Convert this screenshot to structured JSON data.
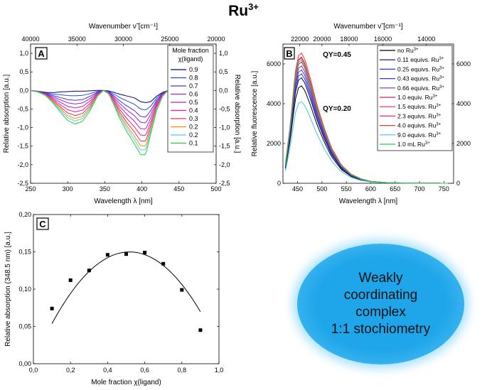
{
  "title": {
    "base": "Ru",
    "sup": "3+"
  },
  "chart_data": [
    {
      "panel": "A",
      "type": "line",
      "xlabel": "Wavelength λ [nm]",
      "ylabel": "Relative absorption [a.u.]",
      "right_ylabel": "Relative absorption [a.u.]",
      "top_xlabel": "Wavenumber ν̃ [cm⁻¹]",
      "xlim": [
        250,
        500
      ],
      "ylim": [
        -2.5,
        1.25
      ],
      "x_ticks": [
        250,
        300,
        350,
        400,
        450,
        500
      ],
      "x_tick_labels": [
        "250",
        "300",
        "350",
        "400",
        "450",
        "500"
      ],
      "y_ticks": [
        -2.5,
        -2.0,
        -1.5,
        -1.0,
        -0.5,
        0.0,
        0.5,
        1.0
      ],
      "y_tick_labels": [
        "-2,5",
        "-2,0",
        "-1,5",
        "-1,0",
        "-0,5",
        "0,0",
        "0,5",
        "1,0"
      ],
      "top_ticks": [
        40000,
        35000,
        30000,
        25000,
        20000
      ],
      "top_tick_labels": [
        "40000",
        "35000",
        "30000",
        "25000",
        "20000"
      ],
      "legend_title": "Mole fraction χ(ligand)",
      "x": [
        250,
        260,
        270,
        280,
        290,
        300,
        310,
        320,
        330,
        340,
        348,
        355,
        362,
        370,
        380,
        390,
        398,
        405,
        412,
        420,
        428,
        435
      ],
      "shape_a": [
        0,
        -0.02,
        -0.08,
        -0.25,
        -0.5,
        -0.72,
        -0.82,
        -0.75,
        -0.5,
        -0.15,
        0,
        -0.07,
        -0.3,
        -0.6,
        -0.9,
        -1.15,
        -1.32,
        -1.3,
        -0.8,
        -0.35,
        -0.1,
        0
      ],
      "baseline_dip": [
        0,
        -0.02,
        -0.05,
        -0.06,
        -0.04,
        -0.03,
        -0.02,
        -0.02,
        -0.01,
        0,
        0,
        -0.01,
        -0.05,
        -0.1,
        -0.15,
        -0.2,
        -0.3,
        -0.33,
        -0.3,
        -0.15,
        -0.05,
        0
      ],
      "series": [
        {
          "name": "0.9",
          "color": "#000080",
          "scale": 0.0
        },
        {
          "name": "0.8",
          "color": "#1f4fd6",
          "scale": 0.15
        },
        {
          "name": "0.7",
          "color": "#5a2ed0",
          "scale": 0.3
        },
        {
          "name": "0.6",
          "color": "#8a2be2",
          "scale": 0.42
        },
        {
          "name": "0.5",
          "color": "#c020c0",
          "scale": 0.55
        },
        {
          "name": "0.4",
          "color": "#ff1493",
          "scale": 0.68
        },
        {
          "name": "0.3",
          "color": "#e8304a",
          "scale": 0.8
        },
        {
          "name": "0.2",
          "color": "#ff8c00",
          "scale": 0.9
        },
        {
          "name": "0.2",
          "color": "#48d1e8",
          "scale": 0.98
        },
        {
          "name": "0.1",
          "color": "#2ecc40",
          "scale": 1.08
        }
      ]
    },
    {
      "panel": "B",
      "type": "line",
      "xlabel": "Wavelength λ [nm]",
      "ylabel": "Relative fluorescence [a.u.]",
      "top_xlabel": "Wavenumber ν̃ [cm⁻¹]",
      "xlim": [
        420,
        770
      ],
      "ylim": [
        0,
        7000
      ],
      "x_ticks": [
        450,
        500,
        550,
        600,
        650,
        700,
        750
      ],
      "x_tick_labels": [
        "450",
        "500",
        "550",
        "600",
        "650",
        "700",
        "750"
      ],
      "y_ticks": [
        0,
        2000,
        4000,
        6000
      ],
      "y_tick_labels": [
        "0",
        "2000",
        "4000",
        "6000"
      ],
      "top_ticks": [
        22000,
        20000,
        18000,
        16000,
        14000
      ],
      "top_tick_labels": [
        "22000",
        "20000",
        "18000",
        "16000",
        "14000"
      ],
      "annotations": [
        {
          "text": "QY=0.45",
          "color": "#e020c0"
        },
        {
          "text": "QY=0.20",
          "color": "#29d6d6"
        }
      ],
      "x": [
        425,
        435,
        445,
        452,
        458,
        465,
        475,
        490,
        505,
        520,
        540,
        560,
        580,
        600,
        630,
        660,
        700,
        760
      ],
      "shape": [
        0.15,
        0.45,
        0.85,
        0.98,
        1.0,
        0.95,
        0.82,
        0.6,
        0.42,
        0.27,
        0.14,
        0.07,
        0.035,
        0.015,
        0.006,
        0.003,
        0.001,
        0
      ],
      "series": [
        {
          "name": "no Ru",
          "sup": "3+",
          "color": "#000000",
          "peak": 4900
        },
        {
          "name": "0.11 equivs. Ru",
          "sup": "3+",
          "color": "#000080",
          "peak": 5300
        },
        {
          "name": "0.25 equivs. Ru",
          "sup": "3+",
          "color": "#2040c0",
          "peak": 5500
        },
        {
          "name": "0.43 equivs. Ru",
          "sup": "3+",
          "color": "#4b2fbf",
          "peak": 5700
        },
        {
          "name": "0.66 equivs. Ru",
          "sup": "3+",
          "color": "#7b2cbf",
          "peak": 5900
        },
        {
          "name": "1.0 equiv. Ru",
          "sup": "3+",
          "color": "#b02090",
          "peak": 6100
        },
        {
          "name": "1.5 equivs. Ru",
          "sup": "3+",
          "color": "#e0207a",
          "peak": 6300
        },
        {
          "name": "2.3 equivs. Ru",
          "sup": "3+",
          "color": "#ff3060",
          "peak": 6550
        },
        {
          "name": "4.0 equivs. Ru",
          "sup": "3+",
          "color": "#d8402a",
          "peak": 6350
        },
        {
          "name": "9.0 equivs. Ru",
          "sup": "3+",
          "color": "#40c8e0",
          "peak": 4100
        },
        {
          "name": "1.0 mL Ru",
          "sup": "3+",
          "color": "#2ecc40",
          "peak": 6200
        }
      ]
    },
    {
      "panel": "C",
      "type": "scatter",
      "xlabel": "Mole fraction χ(ligand)",
      "ylabel": "Relative absorption (348.5 nm) [a.u.]",
      "xlim": [
        0.0,
        1.0
      ],
      "ylim": [
        0.0,
        0.2
      ],
      "x_ticks": [
        0,
        0.2,
        0.4,
        0.6,
        0.8,
        1.0
      ],
      "x_tick_labels": [
        "0,0",
        "0,2",
        "0,4",
        "0,6",
        "0,8",
        "1,0"
      ],
      "y_ticks": [
        0,
        0.05,
        0.1,
        0.15,
        0.2
      ],
      "y_tick_labels": [
        "0,00",
        "0,05",
        "0,10",
        "0,15",
        "0,20"
      ],
      "points": [
        [
          0.1,
          0.074
        ],
        [
          0.2,
          0.112
        ],
        [
          0.3,
          0.125
        ],
        [
          0.4,
          0.146
        ],
        [
          0.5,
          0.147
        ],
        [
          0.6,
          0.149
        ],
        [
          0.7,
          0.134
        ],
        [
          0.8,
          0.099
        ],
        [
          0.9,
          0.045
        ]
      ],
      "fit": {
        "x_start": 0.1,
        "x_end": 0.9,
        "coeffs": [
          0.0022,
          0.57,
          -0.55
        ]
      }
    }
  ],
  "callout": {
    "lines": [
      "Weakly",
      "coordinating",
      "complex",
      "1:1 stochiometry"
    ]
  }
}
